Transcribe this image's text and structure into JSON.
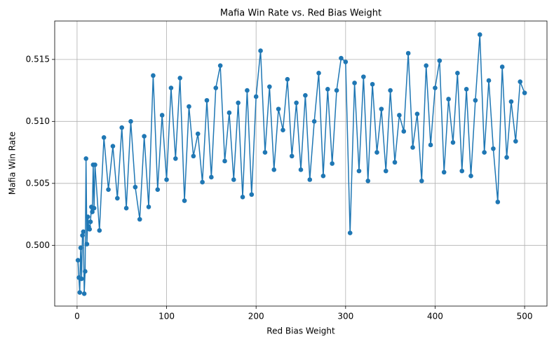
{
  "chart_data": {
    "type": "line",
    "title": "Mafia Win Rate vs. Red Bias Weight",
    "x_label": "Red Bias Weight",
    "y_label": "Mafia Win Rate",
    "series": [
      {
        "name": "Mafia Win Rate",
        "color": "#1f77b4",
        "x": [
          1,
          2,
          3,
          4,
          5,
          6,
          7,
          8,
          9,
          10,
          11,
          12,
          13,
          14,
          15,
          16,
          17,
          18,
          19,
          20,
          25,
          30,
          35,
          40,
          45,
          50,
          55,
          60,
          65,
          70,
          75,
          80,
          85,
          90,
          95,
          100,
          105,
          110,
          115,
          120,
          125,
          130,
          135,
          140,
          145,
          150,
          155,
          160,
          165,
          170,
          175,
          180,
          185,
          190,
          195,
          200,
          205,
          210,
          215,
          220,
          225,
          230,
          235,
          240,
          245,
          250,
          255,
          260,
          265,
          270,
          275,
          280,
          285,
          290,
          295,
          300,
          305,
          310,
          315,
          320,
          325,
          330,
          335,
          340,
          345,
          350,
          355,
          360,
          365,
          370,
          375,
          380,
          385,
          390,
          395,
          400,
          405,
          410,
          415,
          420,
          425,
          430,
          435,
          440,
          445,
          450,
          455,
          460,
          465,
          470,
          475,
          480,
          485,
          490,
          495,
          500
        ],
        "values": [
          0.4988,
          0.4974,
          0.4962,
          0.4998,
          0.4973,
          0.5008,
          0.5011,
          0.4961,
          0.4979,
          0.507,
          0.5001,
          0.5023,
          0.5015,
          0.5013,
          0.5019,
          0.5031,
          0.5027,
          0.5065,
          0.503,
          0.5065,
          0.5012,
          0.5087,
          0.5045,
          0.508,
          0.5038,
          0.5095,
          0.503,
          0.51,
          0.5047,
          0.5021,
          0.5088,
          0.5031,
          0.5137,
          0.5045,
          0.5105,
          0.5053,
          0.5127,
          0.507,
          0.5135,
          0.5036,
          0.5112,
          0.5072,
          0.509,
          0.5051,
          0.5117,
          0.5055,
          0.5127,
          0.5145,
          0.5068,
          0.5107,
          0.5053,
          0.5115,
          0.5039,
          0.5125,
          0.5041,
          0.512,
          0.5157,
          0.5075,
          0.5128,
          0.5061,
          0.511,
          0.5093,
          0.5134,
          0.5072,
          0.5115,
          0.5061,
          0.5121,
          0.5053,
          0.51,
          0.5139,
          0.5056,
          0.5126,
          0.5066,
          0.5125,
          0.5151,
          0.5148,
          0.501,
          0.5131,
          0.506,
          0.5136,
          0.5052,
          0.513,
          0.5075,
          0.511,
          0.506,
          0.5125,
          0.5067,
          0.5105,
          0.5092,
          0.5155,
          0.5079,
          0.5106,
          0.5052,
          0.5145,
          0.5081,
          0.5127,
          0.5149,
          0.5059,
          0.5118,
          0.5083,
          0.5139,
          0.506,
          0.5126,
          0.5056,
          0.5117,
          0.517,
          0.5075,
          0.5133,
          0.5078,
          0.5035,
          0.5144,
          0.5071,
          0.5116,
          0.5084,
          0.5132,
          0.5123
        ]
      }
    ],
    "xlim": [
      -25,
      525
    ],
    "xticks": [
      0,
      100,
      200,
      300,
      400,
      500
    ],
    "ylim": [
      0.4951,
      0.5181
    ],
    "yticks": [
      {
        "value": 0.5,
        "label": "0.500"
      },
      {
        "value": 0.505,
        "label": "0.505"
      },
      {
        "value": 0.51,
        "label": "0.510"
      },
      {
        "value": 0.515,
        "label": "0.515"
      }
    ],
    "grid": true
  }
}
